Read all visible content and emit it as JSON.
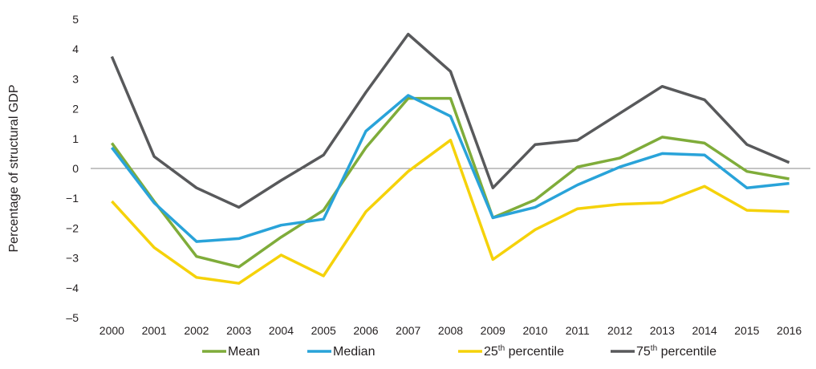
{
  "chart_data": {
    "type": "line",
    "title": "",
    "xlabel": "",
    "ylabel": "Percentage of structural GDP",
    "ylim": [
      -5,
      5
    ],
    "ytick_labels": [
      "5",
      "4",
      "3",
      "2",
      "1",
      "0",
      "−1",
      "−2",
      "−3",
      "−4",
      "–5"
    ],
    "categories": [
      "2000",
      "2001",
      "2002",
      "2003",
      "2004",
      "2005",
      "2006",
      "2007",
      "2008",
      "2009",
      "2010",
      "2011",
      "2012",
      "2013",
      "2014",
      "2015",
      "2016"
    ],
    "grid": false,
    "legend_position": "bottom",
    "series": [
      {
        "name": "Mean",
        "legend_label": "Mean",
        "legend_sup": "",
        "legend_suffix": "",
        "color": "#7fac3a",
        "values": [
          0.85,
          -1.1,
          -2.95,
          -3.3,
          -2.3,
          -1.4,
          0.7,
          2.35,
          2.35,
          -1.65,
          -1.05,
          0.05,
          0.35,
          1.05,
          0.85,
          -0.1,
          -0.35
        ]
      },
      {
        "name": "Median",
        "legend_label": "Median",
        "legend_sup": "",
        "legend_suffix": "",
        "color": "#29a3d9",
        "values": [
          0.7,
          -1.15,
          -2.45,
          -2.35,
          -1.9,
          -1.7,
          1.25,
          2.45,
          1.75,
          -1.65,
          -1.3,
          -0.55,
          0.05,
          0.5,
          0.45,
          -0.65,
          -0.5
        ]
      },
      {
        "name": "25th percentile",
        "legend_label": "25",
        "legend_sup": "th",
        "legend_suffix": " percentile",
        "color": "#f5d20a",
        "values": [
          -1.1,
          -2.65,
          -3.65,
          -3.85,
          -2.9,
          -3.6,
          -1.45,
          -0.1,
          0.95,
          -3.05,
          -2.05,
          -1.35,
          -1.2,
          -1.15,
          -0.6,
          -1.4,
          -1.45
        ]
      },
      {
        "name": "75th percentile",
        "legend_label": "75",
        "legend_sup": "th",
        "legend_suffix": " percentile",
        "color": "#58595b",
        "values": [
          3.75,
          0.4,
          -0.65,
          -1.3,
          -0.4,
          0.45,
          2.55,
          4.5,
          3.25,
          -0.65,
          0.8,
          0.95,
          1.85,
          2.75,
          2.3,
          0.8,
          0.2
        ]
      }
    ]
  }
}
